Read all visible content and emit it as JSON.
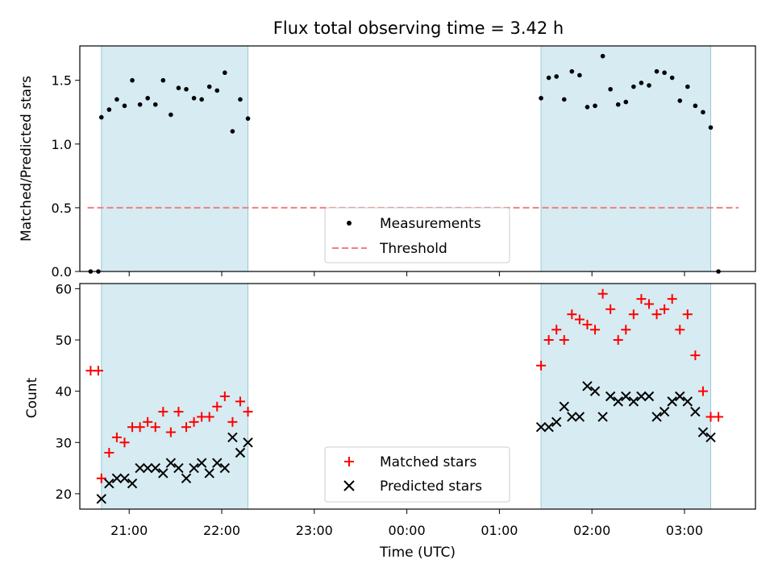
{
  "chart_data": [
    {
      "type": "scatter",
      "title": "Flux total observing time = 3.42 h",
      "xlabel": "",
      "ylabel": "Matched/Predicted stars",
      "xlim": [
        "20:28",
        "03:46"
      ],
      "ylim": [
        0,
        1.77
      ],
      "yticks": [
        0.0,
        0.5,
        1.0,
        1.5
      ],
      "ytick_labels": [
        "0.0",
        "0.5",
        "1.0",
        "1.5"
      ],
      "shaded_intervals": [
        [
          "20:42",
          "22:17"
        ],
        [
          "01:27",
          "03:17"
        ]
      ],
      "threshold": 0.5,
      "threshold_x": [
        "20:33",
        "03:35"
      ],
      "legend": {
        "placement": "lower-center",
        "entries": [
          "Measurements",
          "Threshold"
        ]
      },
      "series": [
        {
          "name": "Measurements",
          "color": "#000000",
          "x": [
            "20:35",
            "20:40",
            "20:42",
            "20:47",
            "20:52",
            "20:57",
            "21:02",
            "21:07",
            "21:12",
            "21:17",
            "21:22",
            "21:27",
            "21:32",
            "21:37",
            "21:42",
            "21:47",
            "21:52",
            "21:57",
            "22:02",
            "22:07",
            "22:12",
            "22:17",
            "01:27",
            "01:32",
            "01:37",
            "01:42",
            "01:47",
            "01:52",
            "01:57",
            "02:02",
            "02:07",
            "02:12",
            "02:17",
            "02:22",
            "02:27",
            "02:32",
            "02:37",
            "02:42",
            "02:47",
            "02:52",
            "02:57",
            "03:02",
            "03:07",
            "03:12",
            "03:17",
            "03:22"
          ],
          "y": [
            0.0,
            0.0,
            1.21,
            1.27,
            1.35,
            1.3,
            1.5,
            1.31,
            1.36,
            1.31,
            1.5,
            1.23,
            1.44,
            1.43,
            1.36,
            1.35,
            1.45,
            1.42,
            1.56,
            1.1,
            1.35,
            1.2,
            1.36,
            1.52,
            1.53,
            1.35,
            1.57,
            1.54,
            1.29,
            1.3,
            1.69,
            1.43,
            1.31,
            1.33,
            1.45,
            1.48,
            1.46,
            1.57,
            1.56,
            1.52,
            1.34,
            1.45,
            1.3,
            1.25,
            1.13,
            0.0
          ]
        },
        {
          "name": "Threshold",
          "color": "#f08080",
          "style": "dashed"
        }
      ]
    },
    {
      "type": "scatter",
      "xlabel": "Time (UTC)",
      "ylabel": "Count",
      "xlim": [
        "20:28",
        "03:46"
      ],
      "ylim": [
        17,
        61
      ],
      "xticks": [
        "21:00",
        "22:00",
        "23:00",
        "00:00",
        "01:00",
        "02:00",
        "03:00"
      ],
      "yticks": [
        20,
        30,
        40,
        50,
        60
      ],
      "ytick_labels": [
        "20",
        "30",
        "40",
        "50",
        "60"
      ],
      "shaded_intervals": [
        [
          "20:42",
          "22:17"
        ],
        [
          "01:27",
          "03:17"
        ]
      ],
      "legend": {
        "placement": "lower-center",
        "entries": [
          "Matched stars",
          "Predicted stars"
        ]
      },
      "series": [
        {
          "name": "Matched stars",
          "color": "#ff0000",
          "marker": "+",
          "x": [
            "20:35",
            "20:40",
            "20:42",
            "20:47",
            "20:52",
            "20:57",
            "21:02",
            "21:07",
            "21:12",
            "21:17",
            "21:22",
            "21:27",
            "21:32",
            "21:37",
            "21:42",
            "21:47",
            "21:52",
            "21:57",
            "22:02",
            "22:07",
            "22:12",
            "22:17",
            "01:27",
            "01:32",
            "01:37",
            "01:42",
            "01:47",
            "01:52",
            "01:57",
            "02:02",
            "02:07",
            "02:12",
            "02:17",
            "02:22",
            "02:27",
            "02:32",
            "02:37",
            "02:42",
            "02:47",
            "02:52",
            "02:57",
            "03:02",
            "03:07",
            "03:12",
            "03:17",
            "03:22"
          ],
          "y": [
            44,
            44,
            23,
            28,
            31,
            30,
            33,
            33,
            34,
            33,
            36,
            32,
            36,
            33,
            34,
            35,
            35,
            37,
            39,
            34,
            38,
            36,
            45,
            50,
            52,
            50,
            55,
            54,
            53,
            52,
            59,
            56,
            50,
            52,
            55,
            58,
            57,
            55,
            56,
            58,
            52,
            55,
            47,
            40,
            35,
            35
          ]
        },
        {
          "name": "Predicted stars",
          "color": "#000000",
          "marker": "x",
          "x": [
            "20:42",
            "20:47",
            "20:52",
            "20:57",
            "21:02",
            "21:07",
            "21:12",
            "21:17",
            "21:22",
            "21:27",
            "21:32",
            "21:37",
            "21:42",
            "21:47",
            "21:52",
            "21:57",
            "22:02",
            "22:07",
            "22:12",
            "22:17",
            "01:27",
            "01:32",
            "01:37",
            "01:42",
            "01:47",
            "01:52",
            "01:57",
            "02:02",
            "02:07",
            "02:12",
            "02:17",
            "02:22",
            "02:27",
            "02:32",
            "02:37",
            "02:42",
            "02:47",
            "02:52",
            "02:57",
            "03:02",
            "03:07",
            "03:12",
            "03:17"
          ],
          "y": [
            19,
            22,
            23,
            23,
            22,
            25,
            25,
            25,
            24,
            26,
            25,
            23,
            25,
            26,
            24,
            26,
            25,
            31,
            28,
            30,
            33,
            33,
            34,
            37,
            35,
            35,
            41,
            40,
            35,
            39,
            38,
            39,
            38,
            39,
            39,
            35,
            36,
            38,
            39,
            38,
            36,
            32,
            31
          ]
        }
      ]
    }
  ]
}
